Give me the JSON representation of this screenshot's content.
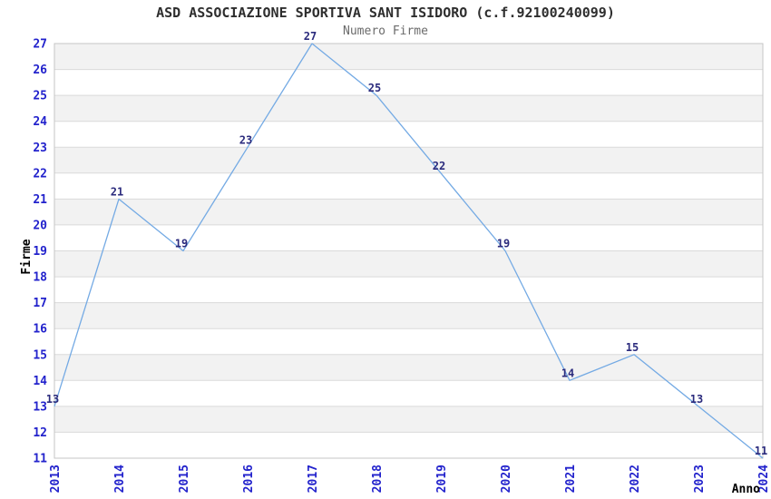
{
  "header": {
    "title": "ASD ASSOCIAZIONE SPORTIVA SANT ISIDORO (c.f.92100240099)",
    "subtitle": "Numero Firme"
  },
  "colors": {
    "title": "#2e2e2e",
    "subtitle": "#6b6b6b",
    "tick_label": "#2222cc",
    "data_label": "#2b2b7d",
    "line": "#74aae4",
    "band": "#f2f2f2",
    "grid": "#dadada",
    "border": "#c6c6c6",
    "axis_label": "#000000",
    "background": "#ffffff"
  },
  "chart_data": {
    "type": "line",
    "title": "ASD ASSOCIAZIONE SPORTIVA SANT ISIDORO (c.f.92100240099)",
    "subtitle": "Numero Firme",
    "xlabel": "Anno",
    "ylabel": "Firme",
    "x": [
      2013,
      2014,
      2015,
      2016,
      2017,
      2018,
      2019,
      2020,
      2021,
      2022,
      2023,
      2024
    ],
    "values": [
      13,
      21,
      19,
      23,
      27,
      25,
      22,
      19,
      14,
      15,
      13,
      11
    ],
    "ylim": [
      11,
      27
    ],
    "ytick_step": 1,
    "xtick_rotation_deg": -90,
    "point_labels_shown": true,
    "markers": "none",
    "legend": "none",
    "grid_style": "alternating horizontal bands with gridline at every integer, full box border"
  }
}
